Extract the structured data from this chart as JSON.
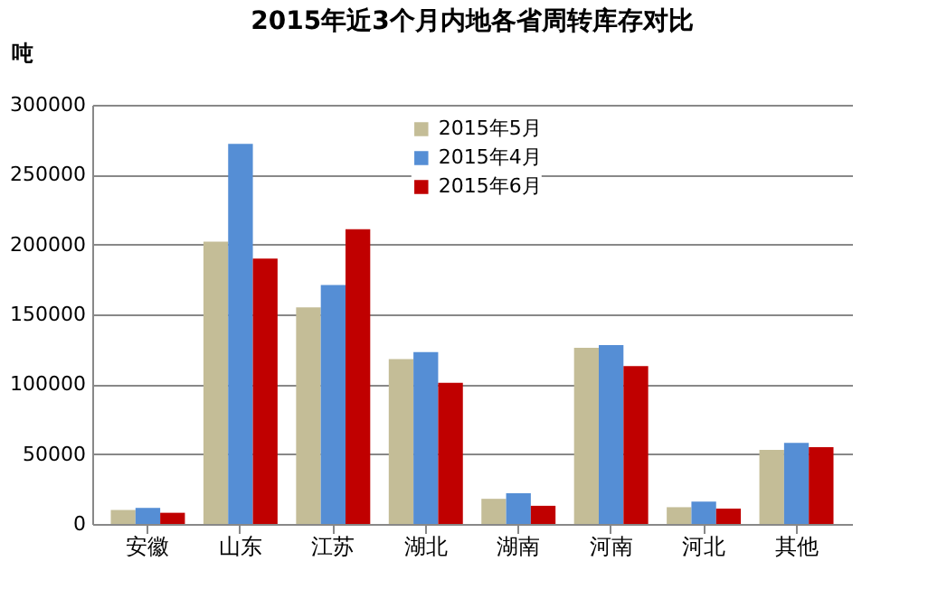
{
  "chart_data": {
    "type": "bar",
    "title": "2015年近3个月内地各省周转库存对比",
    "ylabel": "吨",
    "categories": [
      "安徽",
      "山东",
      "江苏",
      "湖北",
      "湖南",
      "河南",
      "河北",
      "其他"
    ],
    "series": [
      {
        "name": "2015年5月",
        "color": "#c4bd97",
        "values": [
          10000,
          202000,
          155000,
          118000,
          18000,
          126000,
          12000,
          53000
        ]
      },
      {
        "name": "2015年4月",
        "color": "#558ed5",
        "values": [
          11500,
          272000,
          171000,
          123000,
          22000,
          128000,
          16000,
          58000
        ]
      },
      {
        "name": "2015年6月",
        "color": "#c00000",
        "values": [
          8000,
          190000,
          211000,
          101000,
          13000,
          113000,
          11000,
          55000
        ]
      }
    ],
    "ylim": [
      0,
      300000
    ],
    "yticks": [
      0,
      50000,
      100000,
      150000,
      200000,
      250000,
      300000
    ],
    "grid": "y",
    "legend": "top"
  }
}
